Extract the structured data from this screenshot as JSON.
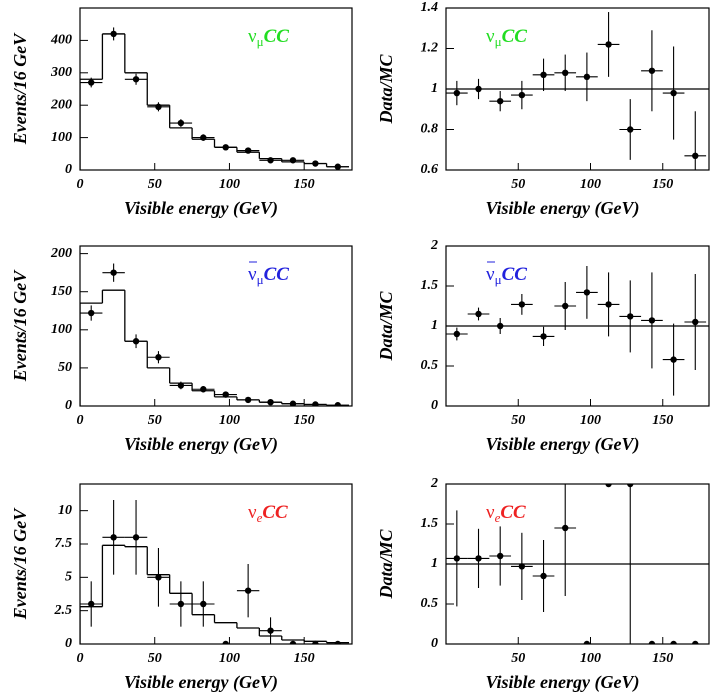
{
  "chart_data": [
    {
      "type": "histogram",
      "xlabel": "Visible energy (GeV)",
      "ylabel": "Events/16 GeV",
      "label": [
        "ν",
        "μ",
        "CC"
      ],
      "label_color": "#22dd22",
      "label_overline": false,
      "xlim": [
        0,
        182
      ],
      "xticks": [
        0,
        50,
        100,
        150
      ],
      "ylim": [
        0,
        500
      ],
      "yticks": [
        0,
        100,
        200,
        300,
        400
      ],
      "bins": [
        0,
        15,
        30,
        45,
        60,
        75,
        90,
        105,
        120,
        135,
        150,
        165,
        180
      ],
      "counts": [
        280,
        420,
        300,
        200,
        130,
        95,
        70,
        55,
        35,
        25,
        20,
        10
      ],
      "points": {
        "x": [
          7.5,
          22.5,
          37.5,
          52.5,
          67.5,
          82.5,
          97.5,
          112.5,
          127.5,
          142.5,
          157.5,
          172.5
        ],
        "values": [
          270,
          420,
          280,
          195,
          145,
          100,
          70,
          60,
          30,
          30,
          20,
          10
        ],
        "errors": [
          15,
          20,
          17,
          14,
          12,
          10,
          8,
          8,
          6,
          5,
          4,
          3
        ]
      }
    },
    {
      "type": "errorbar",
      "xlabel": "Visible energy (GeV)",
      "ylabel": "Data/MC",
      "label": [
        "ν",
        "μ",
        "CC"
      ],
      "label_color": "#22dd22",
      "label_overline": false,
      "xlim": [
        0,
        182
      ],
      "xticks": [
        50,
        100,
        150
      ],
      "ylim": [
        0.6,
        1.4
      ],
      "yticks": [
        0.6,
        0.8,
        1,
        1.2,
        1.4
      ],
      "refline": 1,
      "bins": [
        0,
        15,
        30,
        45,
        60,
        75,
        90,
        105,
        120,
        135,
        150,
        165,
        180
      ],
      "x": [
        7.5,
        22.5,
        37.5,
        52.5,
        67.5,
        82.5,
        97.5,
        112.5,
        127.5,
        142.5,
        157.5,
        172.5
      ],
      "values": [
        0.98,
        1.0,
        0.94,
        0.97,
        1.07,
        1.08,
        1.06,
        1.22,
        0.8,
        1.09,
        0.98,
        0.67
      ],
      "errors": [
        0.06,
        0.05,
        0.05,
        0.07,
        0.08,
        0.09,
        0.12,
        0.16,
        0.15,
        0.2,
        0.23,
        0.22
      ]
    },
    {
      "type": "histogram",
      "xlabel": "Visible energy (GeV)",
      "ylabel": "Events/16 GeV",
      "label": [
        "ν",
        "μ",
        "CC"
      ],
      "label_color": "#2222dd",
      "label_overline": true,
      "xlim": [
        0,
        182
      ],
      "xticks": [
        0,
        50,
        100,
        150
      ],
      "ylim": [
        0,
        210
      ],
      "yticks": [
        0,
        50,
        100,
        150,
        200
      ],
      "bins": [
        0,
        15,
        30,
        45,
        60,
        75,
        90,
        105,
        120,
        135,
        150,
        165,
        180
      ],
      "counts": [
        135,
        152,
        85,
        50,
        30,
        20,
        12,
        8,
        5,
        3,
        2,
        1
      ],
      "points": {
        "x": [
          7.5,
          22.5,
          37.5,
          52.5,
          67.5,
          82.5,
          97.5,
          112.5,
          127.5,
          142.5,
          157.5,
          172.5
        ],
        "values": [
          122,
          175,
          85,
          64,
          27,
          22,
          15,
          8,
          5,
          3,
          2,
          1
        ],
        "errors": [
          10,
          12,
          9,
          8,
          5,
          4,
          4,
          3,
          2,
          2,
          1,
          1
        ]
      }
    },
    {
      "type": "errorbar",
      "xlabel": "Visible energy (GeV)",
      "ylabel": "Data/MC",
      "label": [
        "ν",
        "μ",
        "CC"
      ],
      "label_color": "#2222dd",
      "label_overline": true,
      "xlim": [
        0,
        182
      ],
      "xticks": [
        50,
        100,
        150
      ],
      "ylim": [
        0,
        2
      ],
      "yticks": [
        0,
        0.5,
        1,
        1.5,
        2
      ],
      "refline": 1,
      "bins": [
        0,
        15,
        30,
        45,
        60,
        75,
        90,
        105,
        120,
        135,
        150,
        165,
        180
      ],
      "x": [
        7.5,
        22.5,
        37.5,
        52.5,
        67.5,
        82.5,
        97.5,
        112.5,
        127.5,
        142.5,
        157.5,
        172.5
      ],
      "values": [
        0.9,
        1.15,
        1.0,
        1.27,
        0.87,
        1.25,
        1.42,
        1.27,
        1.12,
        1.07,
        0.58,
        1.05
      ],
      "errors": [
        0.08,
        0.08,
        0.1,
        0.13,
        0.12,
        0.3,
        0.33,
        0.4,
        0.45,
        0.6,
        0.45,
        0.6
      ]
    },
    {
      "type": "histogram",
      "xlabel": "Visible energy (GeV)",
      "ylabel": "Events/16 GeV",
      "label": [
        "ν",
        "e",
        "CC"
      ],
      "label_color": "#ee2222",
      "label_overline": false,
      "xlim": [
        0,
        182
      ],
      "xticks": [
        0,
        50,
        100,
        150
      ],
      "ylim": [
        0,
        12
      ],
      "yticks": [
        0,
        2.5,
        5,
        7.5,
        10
      ],
      "bins": [
        0,
        15,
        30,
        45,
        60,
        75,
        90,
        105,
        120,
        135,
        150,
        165,
        180
      ],
      "counts": [
        2.8,
        7.4,
        7.3,
        5.2,
        3.8,
        2.2,
        1.6,
        1.2,
        0.6,
        0.3,
        0.2,
        0.1
      ],
      "points": {
        "x": [
          7.5,
          22.5,
          37.5,
          52.5,
          67.5,
          82.5,
          97.5,
          112.5,
          127.5,
          142.5,
          157.5,
          172.5
        ],
        "values": [
          3,
          8,
          8,
          5,
          3,
          3,
          0,
          4,
          1,
          0,
          0,
          0
        ],
        "errors": [
          1.7,
          2.8,
          2.8,
          2.2,
          1.7,
          1.7,
          0,
          2,
          1,
          0,
          0,
          0
        ]
      }
    },
    {
      "type": "errorbar",
      "xlabel": "Visible energy (GeV)",
      "ylabel": "Data/MC",
      "label": [
        "ν",
        "e",
        "CC"
      ],
      "label_color": "#ee2222",
      "label_overline": false,
      "xlim": [
        0,
        182
      ],
      "xticks": [
        50,
        100,
        150
      ],
      "ylim": [
        0,
        2
      ],
      "yticks": [
        0,
        0.5,
        1,
        1.5,
        2
      ],
      "refline": 1,
      "bins": [
        0,
        15,
        30,
        45,
        60,
        75,
        90,
        105,
        120,
        135,
        150,
        165,
        180
      ],
      "x": [
        7.5,
        22.5,
        37.5,
        52.5,
        67.5,
        82.5,
        97.5,
        112.5,
        127.5,
        142.5,
        157.5,
        172.5
      ],
      "values": [
        1.07,
        1.07,
        1.1,
        0.97,
        0.85,
        1.45,
        0,
        2,
        2,
        0,
        0,
        0
      ],
      "errors": [
        0.6,
        0.37,
        0.37,
        0.42,
        0.45,
        0.85,
        0,
        0,
        2,
        0,
        0,
        0
      ]
    }
  ]
}
